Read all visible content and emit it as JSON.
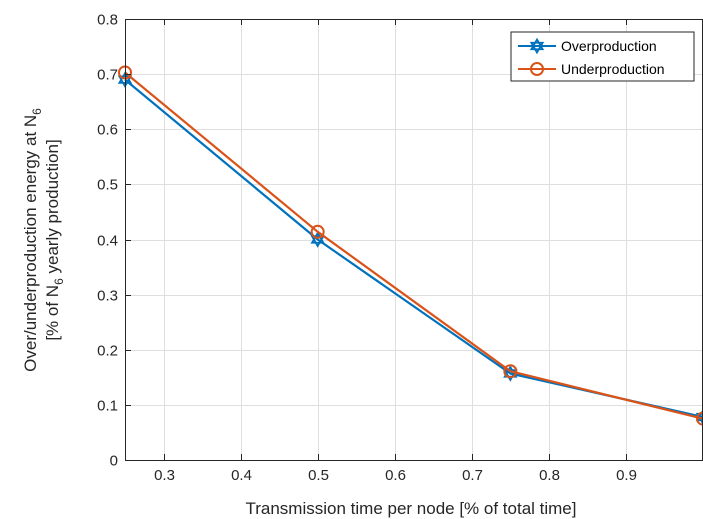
{
  "chart_data": {
    "type": "line",
    "xlabel": "Transmission time per node [% of total time]",
    "ylabel_line1_main": "Over/underproduction energy at N",
    "ylabel_line1_sub": "6",
    "ylabel_line2_pre": "[% of N",
    "ylabel_line2_sub": "6",
    "ylabel_line2_post": " yearly production]",
    "xlim": [
      0.25,
      1.0
    ],
    "ylim": [
      0,
      0.8
    ],
    "xticks": [
      0.3,
      0.4,
      0.5,
      0.6,
      0.7,
      0.8,
      0.9
    ],
    "yticks": [
      0,
      0.1,
      0.2,
      0.3,
      0.4,
      0.5,
      0.6,
      0.7,
      0.8
    ],
    "xtick_labels": [
      "0.3",
      "0.4",
      "0.5",
      "0.6",
      "0.7",
      "0.8",
      "0.9"
    ],
    "ytick_labels": [
      "0",
      "0.1",
      "0.2",
      "0.3",
      "0.4",
      "0.5",
      "0.6",
      "0.7",
      "0.8"
    ],
    "grid": true,
    "legend_position": "top-right",
    "x": [
      0.25,
      0.5,
      0.75,
      1.0
    ],
    "series": [
      {
        "name": "Overproduction",
        "values": [
          0.69,
          0.4,
          0.157,
          0.078
        ],
        "color": "#0072BD",
        "marker": "hexagram"
      },
      {
        "name": "Underproduction",
        "values": [
          0.703,
          0.414,
          0.161,
          0.075
        ],
        "color": "#D95319",
        "marker": "circle"
      }
    ]
  }
}
